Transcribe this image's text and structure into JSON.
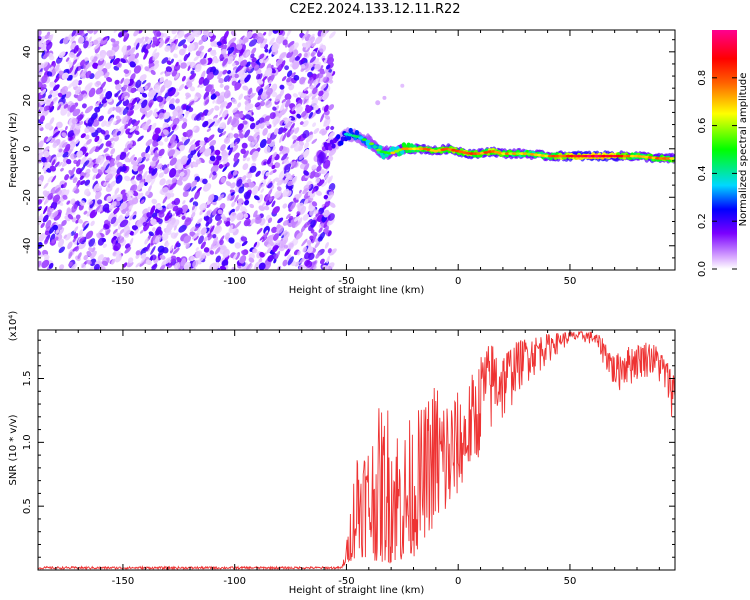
{
  "title": "C2E2.2024.133.12.11.R22",
  "chart_data": [
    {
      "type": "heatmap",
      "title": "C2E2.2024.133.12.11.R22",
      "xlabel": "Height of straight line (km)",
      "ylabel": "Frequency (Hz)",
      "xlim": [
        -188,
        97
      ],
      "ylim": [
        -50,
        49
      ],
      "xticks": [
        -150,
        -100,
        -50,
        0,
        50
      ],
      "yticks": [
        -40,
        -20,
        0,
        20,
        40
      ],
      "colorbar": {
        "label": "Normalized spectral amplitude",
        "range": [
          0,
          1
        ],
        "ticks": [
          0.0,
          0.2,
          0.4,
          0.6,
          0.8
        ],
        "colormap": [
          "#ffffff",
          "#d8a8ff",
          "#7a00ff",
          "#0000ff",
          "#00d8ff",
          "#00ff00",
          "#ffff00",
          "#ff6000",
          "#ff0000",
          "#ff0090"
        ]
      },
      "ridge": {
        "x": [
          -60,
          -55,
          -50,
          -45,
          -40,
          -35,
          -30,
          -25,
          -20,
          -15,
          -10,
          -5,
          0,
          5,
          10,
          15,
          20,
          30,
          40,
          50,
          60,
          70,
          80,
          90,
          97
        ],
        "freq": [
          0,
          2,
          6,
          5,
          3,
          -1,
          -2,
          0,
          0,
          0,
          -1,
          0,
          -1,
          -2,
          -2,
          -1,
          -2,
          -2,
          -3,
          -3,
          -3,
          -3,
          -3,
          -4,
          -4
        ],
        "amplitude": [
          0.25,
          0.3,
          0.4,
          0.45,
          0.5,
          0.55,
          0.6,
          0.65,
          0.7,
          0.75,
          0.7,
          0.75,
          0.75,
          0.8,
          0.7,
          0.8,
          0.7,
          0.65,
          0.7,
          0.85,
          0.9,
          0.85,
          0.7,
          0.75,
          0.7
        ]
      },
      "noise_region": {
        "x_range": [
          -188,
          -60
        ],
        "freq_range": [
          -50,
          49
        ],
        "amplitude_range": [
          0.05,
          0.3
        ]
      }
    },
    {
      "type": "line",
      "xlabel": "Height of straight line (km)",
      "ylabel": "SNR (10 * v/v)",
      "y_multiplier": "(x10⁴)",
      "color": "#ee3333",
      "xlim": [
        -188,
        97
      ],
      "ylim": [
        0,
        1.88
      ],
      "xticks": [
        -150,
        -100,
        -50,
        0,
        50
      ],
      "yticks": [
        0.5,
        1.0,
        1.5
      ],
      "tick_labels": {
        "-150": "-150",
        "-100": "-100",
        "-50": "-50",
        "0": "0",
        "50": "50",
        "0.5": "0.5",
        "1.0": "1.0",
        "1.5": "1.5"
      },
      "envelope": {
        "x": [
          -188,
          -60,
          -52,
          -50,
          -45,
          -40,
          -35,
          -30,
          -25,
          -20,
          -15,
          -10,
          -5,
          0,
          5,
          10,
          15,
          20,
          25,
          30,
          35,
          40,
          45,
          50,
          55,
          60,
          65,
          70,
          75,
          80,
          85,
          90,
          95,
          97
        ],
        "upper": [
          0.02,
          0.02,
          0.03,
          0.2,
          1.1,
          1.05,
          1.3,
          1.35,
          1.1,
          1.25,
          1.3,
          1.55,
          1.45,
          1.4,
          1.5,
          1.7,
          1.8,
          1.72,
          1.78,
          1.82,
          1.84,
          1.85,
          1.86,
          1.87,
          1.87,
          1.87,
          1.82,
          1.68,
          1.75,
          1.77,
          1.8,
          1.75,
          1.6,
          1.55
        ],
        "lower": [
          0.0,
          0.0,
          0.01,
          0.05,
          0.1,
          0.1,
          0.05,
          0.05,
          0.05,
          0.1,
          0.25,
          0.35,
          0.4,
          0.6,
          0.8,
          0.9,
          0.95,
          1.05,
          1.3,
          1.45,
          1.5,
          1.6,
          1.7,
          1.75,
          1.78,
          1.75,
          1.6,
          1.35,
          1.4,
          1.45,
          1.5,
          1.4,
          1.2,
          1.15
        ]
      }
    }
  ]
}
